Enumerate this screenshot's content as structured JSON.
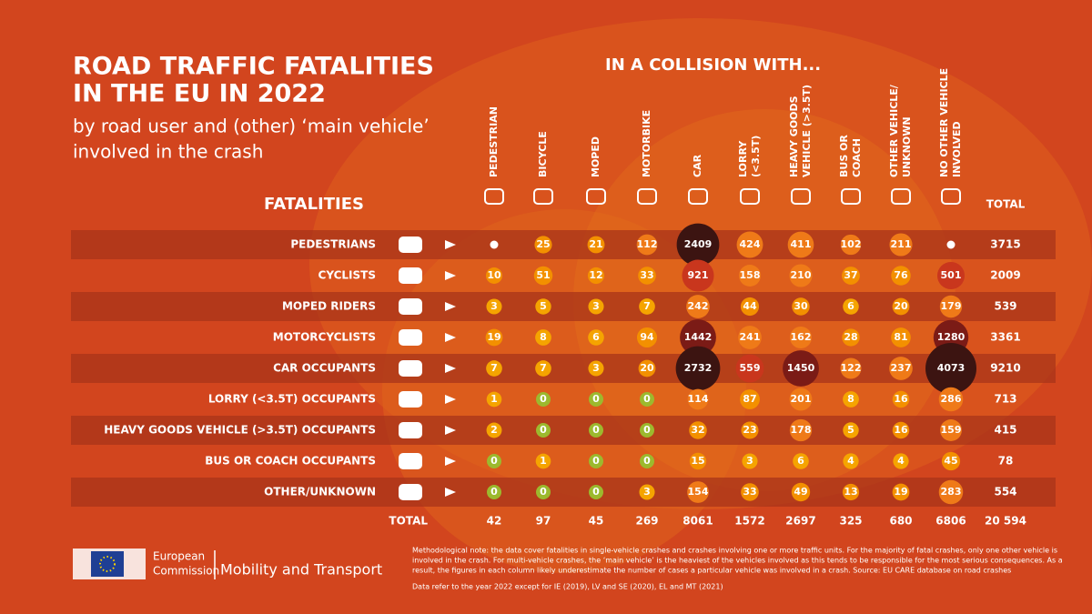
{
  "header": {
    "title_lines": [
      "ROAD TRAFFIC FATALITIES",
      "IN THE EU IN 2022"
    ],
    "subtitle_lines": [
      "by road user and (other) ‘main vehicle’",
      "involved in the crash"
    ]
  },
  "table": {
    "row_header": "FATALITIES",
    "column_group": "IN A COLLISION WITH...",
    "total_header": "TOTAL",
    "total_label": "TOTAL",
    "columns": [
      [
        "PEDESTRIAN"
      ],
      [
        "BICYCLE"
      ],
      [
        "MOPED"
      ],
      [
        "MOTORBIKE"
      ],
      [
        "CAR"
      ],
      [
        "LORRY",
        "(<3.5T)"
      ],
      [
        "HEAVY GOODS",
        "VEHICLE (>3.5T)"
      ],
      [
        "BUS OR",
        "COACH"
      ],
      [
        "OTHER VEHICLE/",
        "UNKNOWN"
      ],
      [
        "NO OTHER VEHICLE",
        "INVOLVED"
      ]
    ],
    "rows": [
      {
        "label": "PEDESTRIANS",
        "cells": [
          null,
          25,
          21,
          112,
          2409,
          424,
          411,
          102,
          211,
          null
        ],
        "total": 3715
      },
      {
        "label": "CYCLISTS",
        "cells": [
          10,
          51,
          12,
          33,
          921,
          158,
          210,
          37,
          76,
          501
        ],
        "total": 2009
      },
      {
        "label": "MOPED RIDERS",
        "cells": [
          3,
          5,
          3,
          7,
          242,
          44,
          30,
          6,
          20,
          179
        ],
        "total": 539
      },
      {
        "label": "MOTORCYCLISTS",
        "cells": [
          19,
          8,
          6,
          94,
          1442,
          241,
          162,
          28,
          81,
          1280
        ],
        "total": 3361
      },
      {
        "label": "CAR OCCUPANTS",
        "cells": [
          7,
          7,
          3,
          20,
          2732,
          559,
          1450,
          122,
          237,
          4073
        ],
        "total": 9210
      },
      {
        "label": "LORRY (<3.5T) OCCUPANTS",
        "cells": [
          1,
          0,
          0,
          0,
          114,
          87,
          201,
          8,
          16,
          286
        ],
        "total": 713
      },
      {
        "label": "HEAVY GOODS VEHICLE (>3.5T) OCCUPANTS",
        "cells": [
          2,
          0,
          0,
          0,
          32,
          23,
          178,
          5,
          16,
          159
        ],
        "total": 415
      },
      {
        "label": "BUS OR COACH OCCUPANTS",
        "cells": [
          0,
          1,
          0,
          0,
          15,
          3,
          6,
          4,
          4,
          45
        ],
        "total": 78
      },
      {
        "label": "OTHER/UNKNOWN",
        "cells": [
          0,
          0,
          0,
          3,
          154,
          33,
          49,
          13,
          19,
          283
        ],
        "total": 554
      }
    ],
    "totals": [
      42,
      97,
      45,
      269,
      8061,
      1572,
      2697,
      325,
      680,
      6806
    ],
    "grand_total": "20 594"
  },
  "footer": {
    "org_lines": [
      "European",
      "Commission"
    ],
    "department": "Mobility and Transport",
    "note_lines": [
      "Methodological note: the data cover fatalities in single-vehicle crashes and crashes involving one or more traffic units. For the majority of fatal crashes, only one other vehicle is",
      "involved in the crash. For multi-vehicle crashes, the ‘main vehicle’ is the heaviest of the vehicles involved as this tends to be responsible for the most serious consequences. As a",
      "result, the figures in each column likely underestimate the number of cases a particular vehicle was involved in a crash. Source: EU CARE database on road crashes"
    ],
    "data_note": "Data refer to the year 2022 except for IE (2019), LV and SE (2020), EL and MT (2021)"
  }
}
